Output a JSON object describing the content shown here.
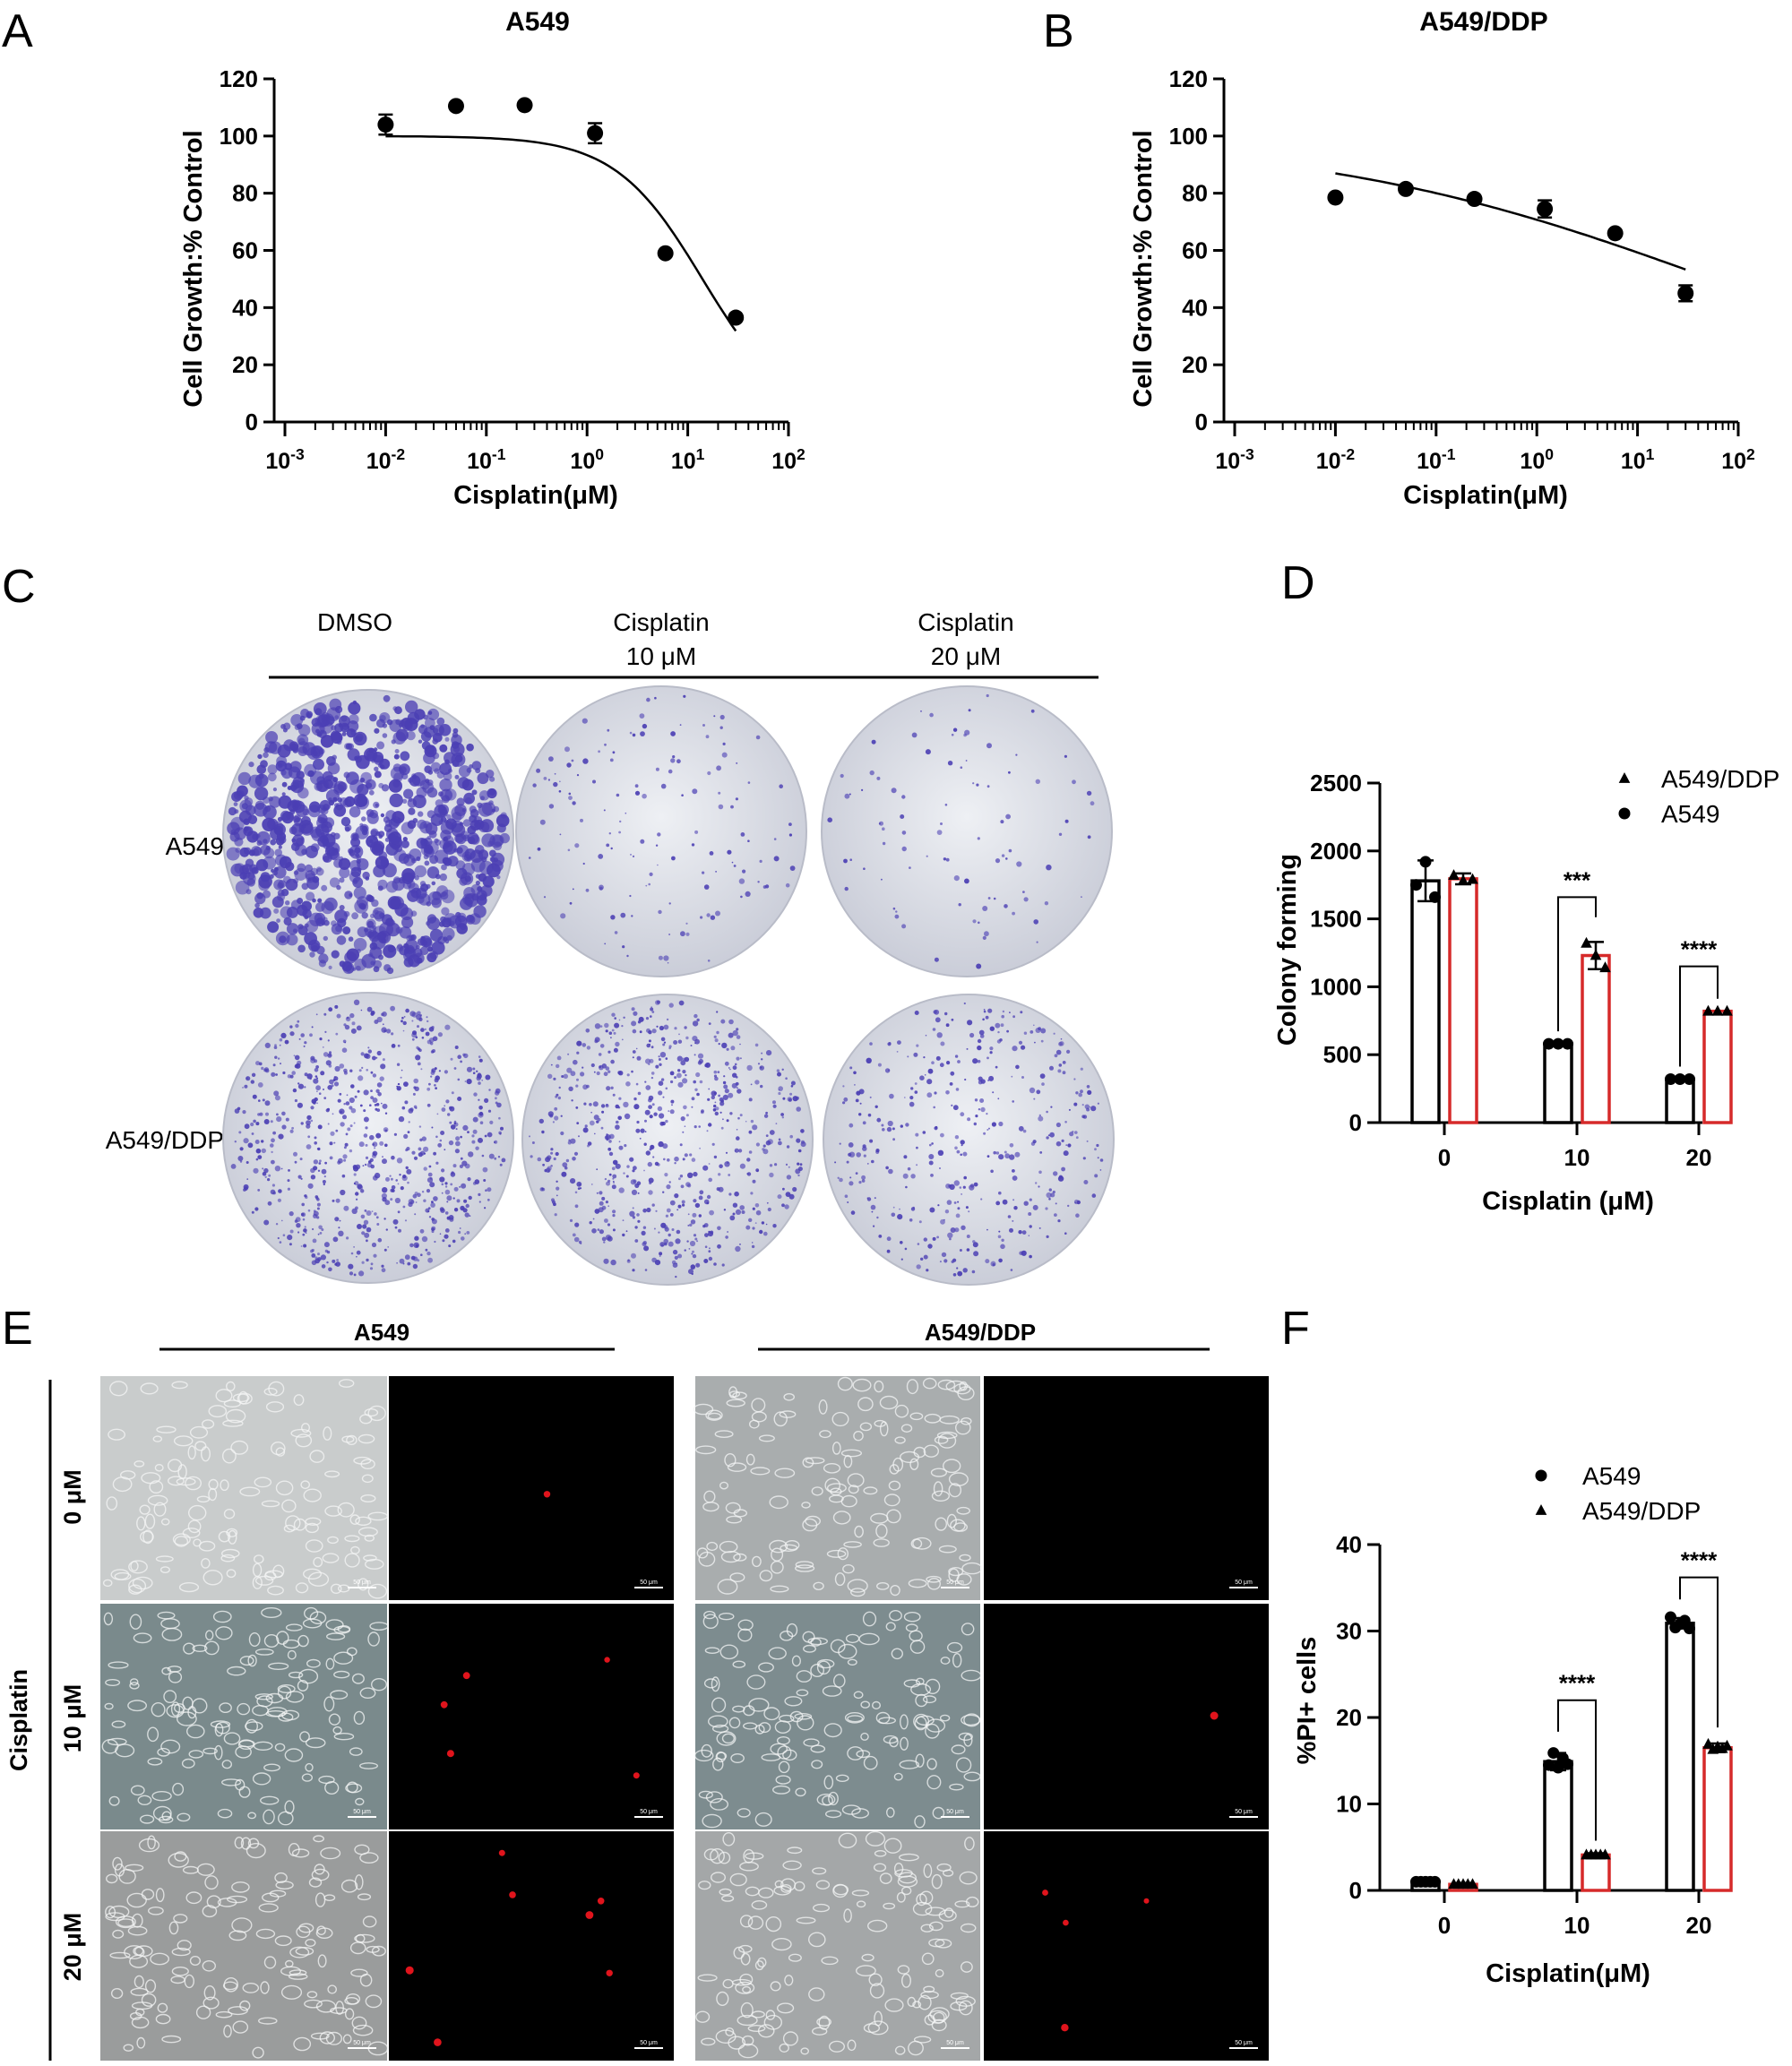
{
  "panel_letters": [
    "A",
    "B",
    "C",
    "D",
    "E",
    "F"
  ],
  "colors": {
    "axis": "#000000",
    "bar_a549": "#000000",
    "bar_ddp": "#d62a2a",
    "stain": "#4b3fb4",
    "plate": "#dcdfe6",
    "pi_red": "#e0141c"
  },
  "chart_data": [
    {
      "id": "A",
      "type": "scatter",
      "title": "A549",
      "xlabel": "Cisplatin(μM)",
      "ylabel": "Cell Growth:% Control",
      "x_scale": "log",
      "xlim": [
        0.001,
        100
      ],
      "ylim": [
        0,
        120
      ],
      "x_tick_labels": [
        "10-3",
        "10-2",
        "10-1",
        "100",
        "101",
        "102"
      ],
      "y_tick_labels": [
        "0",
        "20",
        "40",
        "60",
        "80",
        "100",
        "120"
      ],
      "x": [
        0.01,
        0.05,
        0.24,
        1.2,
        6,
        30
      ],
      "y": [
        104,
        110.5,
        110.8,
        101,
        59,
        36.5
      ],
      "err": [
        3.5,
        0,
        0,
        3.5,
        0,
        0
      ],
      "fit": {
        "top": 100,
        "bottom": 0,
        "ic50": 14,
        "hill": 1
      }
    },
    {
      "id": "B",
      "type": "scatter",
      "title": "A549/DDP",
      "xlabel": "Cisplatin(μM)",
      "ylabel": "Cell Growth:% Control",
      "x_scale": "log",
      "xlim": [
        0.001,
        100
      ],
      "ylim": [
        0,
        120
      ],
      "x_tick_labels": [
        "10-3",
        "10-2",
        "10-1",
        "100",
        "101",
        "102"
      ],
      "y_tick_labels": [
        "0",
        "20",
        "40",
        "60",
        "80",
        "100",
        "120"
      ],
      "x": [
        0.01,
        0.05,
        0.24,
        1.2,
        6,
        30
      ],
      "y": [
        78.5,
        81.5,
        78,
        74.5,
        66,
        45
      ],
      "err": [
        0,
        0,
        0,
        3,
        0,
        2.8
      ],
      "fit": {
        "top": 100,
        "bottom": 0,
        "ic50": 55,
        "hill": 0.22
      }
    },
    {
      "id": "D",
      "type": "bar",
      "xlabel": "Cisplatin (μM)",
      "ylabel": "Colony forming",
      "ylim": [
        0,
        2500
      ],
      "y_tick_labels": [
        "0",
        "500",
        "1000",
        "1500",
        "2000",
        "2500"
      ],
      "categories": [
        "0",
        "10",
        "20"
      ],
      "legend": {
        "placement": "top-right",
        "entries": [
          {
            "label": "A549/DDP",
            "marker": "triangle"
          },
          {
            "label": "A549",
            "marker": "circle"
          }
        ]
      },
      "series": [
        {
          "name": "A549",
          "marker": "circle",
          "values": [
            1780,
            580,
            320
          ],
          "err": [
            150,
            0,
            0
          ],
          "points": [
            [
              1750,
              1920,
              1660
            ],
            [
              580,
              580,
              580
            ],
            [
              320,
              320,
              320
            ]
          ]
        },
        {
          "name": "A549/DDP",
          "marker": "triangle",
          "values": [
            1795,
            1230,
            820
          ],
          "err": [
            40,
            100,
            0
          ],
          "points": [
            [
              1820,
              1780,
              1790
            ],
            [
              1320,
              1230,
              1140
            ],
            [
              820,
              820,
              820
            ]
          ]
        }
      ],
      "significance": [
        {
          "category": "10",
          "label": "***",
          "y": 1660
        },
        {
          "category": "20",
          "label": "****",
          "y": 1150
        }
      ]
    },
    {
      "id": "F",
      "type": "bar",
      "xlabel": "Cisplatin(μM)",
      "ylabel": "%PI+ cells",
      "ylim": [
        0,
        40
      ],
      "y_tick_labels": [
        "0",
        "10",
        "20",
        "30",
        "40"
      ],
      "categories": [
        "0",
        "10",
        "20"
      ],
      "legend": {
        "placement": "top-right",
        "entries": [
          {
            "label": "A549",
            "marker": "circle"
          },
          {
            "label": "A549/DDP",
            "marker": "triangle"
          }
        ]
      },
      "series": [
        {
          "name": "A549",
          "marker": "circle",
          "values": [
            1,
            14.9,
            30.9
          ],
          "err": [
            0.2,
            1,
            0.6
          ],
          "points": [
            [
              1,
              1,
              1,
              1,
              1
            ],
            [
              14.5,
              15.9,
              14.2,
              15.3,
              14.6
            ],
            [
              31.6,
              30.4,
              30.8,
              31.2,
              30.3
            ]
          ]
        },
        {
          "name": "A549/DDP",
          "marker": "triangle",
          "values": [
            0.7,
            4.1,
            16.5
          ],
          "err": [
            0.15,
            0.2,
            0.5
          ],
          "points": [
            [
              0.7,
              0.7,
              0.7,
              0.7,
              0.7
            ],
            [
              4.1,
              4.1,
              4.1,
              4.1,
              4.1
            ],
            [
              16.9,
              16.3,
              16.6,
              16.4,
              16.7
            ]
          ]
        }
      ],
      "significance": [
        {
          "category": "10",
          "label": "****",
          "y": 22
        },
        {
          "category": "20",
          "label": "****",
          "y": 36.2
        }
      ]
    }
  ],
  "panel_c": {
    "column_headers": [
      [
        "DMSO"
      ],
      [
        "Cisplatin",
        "10 μM"
      ],
      [
        "Cisplatin",
        "20 μM"
      ]
    ],
    "row_labels": [
      "A549",
      "A549/DDP"
    ],
    "density": [
      [
        1.0,
        0.16,
        0.1
      ],
      [
        0.85,
        0.75,
        0.45
      ]
    ]
  },
  "panel_e": {
    "group_headers": [
      "A549",
      "A549/DDP"
    ],
    "side_label": "Cisplatin",
    "row_labels": [
      "0 μM",
      "10 μM",
      "20 μM"
    ],
    "scale_bar": "50 μm",
    "pi_counts": [
      [
        1,
        5,
        7
      ],
      [
        0,
        1,
        4
      ]
    ],
    "field_tone": [
      [
        "#c9cccc",
        "#7a8a8c",
        "#9a9c9c"
      ],
      [
        "#a9adae",
        "#7d8c8f",
        "#a4a7a8"
      ]
    ]
  }
}
